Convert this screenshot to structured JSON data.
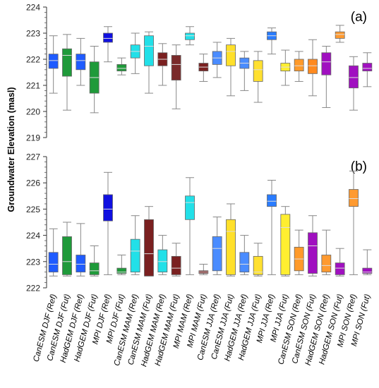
{
  "chart_data": {
    "type": "boxplot",
    "ylabel": "Groundwater Elevation (masl)",
    "categories": [
      "CanESM DJF (Ref)",
      "CanESM DJF (Fut)",
      "HadGEM DJF (Ref)",
      "HadGEM DJF (Fut)",
      "MPI DJF (Ref)",
      "MPI DJF (Fut)",
      "CanESM MAM (Ref)",
      "CanESM MAM (Fut)",
      "HadGEM MAM (Ref)",
      "HadGEM MAM (Fut)",
      "MPI MAM (Ref)",
      "MPI MAM (Fut)",
      "CanESM JJA (Ref)",
      "CanESM JJA (Fut)",
      "HadGEM JJA (Ref)",
      "HadGEM JJA (Fut)",
      "MPI JJA (Ref)",
      "MPI JJA (Fut)",
      "CanESM SON (Ref)",
      "CanESM SON (Fut)",
      "HadGEM SON (Ref)",
      "HadGEM SON (Fut)",
      "MPI SON (Ref)",
      "MPI SON (Fut)"
    ],
    "colors": [
      "#1f5bff",
      "#1f5bff",
      "#1f5bff",
      "#1f9a3a",
      "#1f9a3a",
      "#1010e0",
      "#1a9a3a",
      "#2ec0c0",
      "#22e0e8",
      "#7a2020",
      "#7a2a2a",
      "#22e0e8",
      "#7a2020",
      "#4a8cff",
      "#ffe02a",
      "#4a8cff",
      "#ffe030",
      "#2a7cff",
      "#ffee30",
      "#ff9a2a",
      "#ff8a20",
      "#ff9a30",
      "#a010c0",
      "#ffa030"
    ],
    "panels": [
      {
        "label": "(a)",
        "ylim": [
          219,
          224
        ],
        "yticks": [
          "219",
          "220",
          "221",
          "222",
          "223",
          "224"
        ],
        "colors": [
          "#1f5bff",
          "#1f9a3a",
          "#1f5bff",
          "#1f9a3a",
          "#1010e0",
          "#1f9a3a",
          "#22e0e8",
          "#22e0e8",
          "#7a2020",
          "#7a2a2a",
          "#22e0e8",
          "#7a2020",
          "#4a8cff",
          "#ffe02a",
          "#4a8cff",
          "#ffe030",
          "#2a7cff",
          "#ffee30",
          "#ff9a2a",
          "#ff8a20",
          "#a010c0",
          "#ff9a30",
          "#a010c0",
          "#a010c0"
        ],
        "boxes": [
          {
            "min": 220.7,
            "q1": 221.65,
            "median": 221.95,
            "q3": 222.2,
            "max": 222.9
          },
          {
            "min": 220.05,
            "q1": 221.35,
            "median": 222.15,
            "q3": 222.4,
            "max": 222.95
          },
          {
            "min": 221.0,
            "q1": 221.6,
            "median": 221.95,
            "q3": 222.2,
            "max": 222.8
          },
          {
            "min": 219.95,
            "q1": 220.7,
            "median": 221.3,
            "q3": 221.9,
            "max": 222.5
          },
          {
            "min": 221.9,
            "q1": 222.65,
            "median": 222.8,
            "q3": 223.0,
            "max": 223.25
          },
          {
            "min": 221.4,
            "q1": 221.55,
            "median": 221.65,
            "q3": 221.8,
            "max": 222.05
          },
          {
            "min": 221.45,
            "q1": 222.05,
            "median": 222.3,
            "q3": 222.55,
            "max": 223.0
          },
          {
            "min": 220.7,
            "q1": 221.75,
            "median": 222.5,
            "q3": 222.9,
            "max": 223.05
          },
          {
            "min": 221.0,
            "q1": 221.75,
            "median": 222.0,
            "q3": 222.25,
            "max": 222.6
          },
          {
            "min": 220.1,
            "q1": 221.2,
            "median": 221.8,
            "q3": 222.15,
            "max": 222.55
          },
          {
            "min": 222.55,
            "q1": 222.75,
            "median": 222.9,
            "q3": 223.0,
            "max": 223.25
          },
          {
            "min": 221.15,
            "q1": 221.55,
            "median": 221.7,
            "q3": 221.85,
            "max": 222.2
          },
          {
            "min": 221.3,
            "q1": 221.8,
            "median": 222.05,
            "q3": 222.3,
            "max": 222.65
          },
          {
            "min": 220.6,
            "q1": 221.75,
            "median": 222.3,
            "q3": 222.55,
            "max": 222.8
          },
          {
            "min": 220.8,
            "q1": 221.65,
            "median": 221.85,
            "q3": 222.05,
            "max": 222.3
          },
          {
            "min": 220.35,
            "q1": 221.15,
            "median": 221.6,
            "q3": 221.95,
            "max": 222.3
          },
          {
            "min": 222.2,
            "q1": 222.75,
            "median": 222.9,
            "q3": 223.05,
            "max": 223.2
          },
          {
            "min": 221.0,
            "q1": 221.55,
            "median": 221.7,
            "q3": 221.85,
            "max": 222.35
          },
          {
            "min": 221.15,
            "q1": 221.55,
            "median": 221.75,
            "q3": 222.0,
            "max": 222.3
          },
          {
            "min": 220.6,
            "q1": 221.45,
            "median": 221.75,
            "q3": 222.0,
            "max": 222.75
          },
          {
            "min": 220.15,
            "q1": 221.4,
            "median": 221.9,
            "q3": 222.25,
            "max": 222.5
          },
          {
            "min": 222.65,
            "q1": 222.8,
            "median": 222.95,
            "q3": 223.05,
            "max": 223.3
          },
          {
            "min": 220.05,
            "q1": 220.9,
            "median": 221.3,
            "q3": 221.75,
            "max": 222.1
          },
          {
            "min": 220.95,
            "q1": 221.55,
            "median": 221.65,
            "q3": 221.85,
            "max": 222.25
          }
        ]
      },
      {
        "label": "(b)",
        "ylim": [
          222,
          227
        ],
        "yticks": [
          "222",
          "223",
          "224",
          "225",
          "226",
          "227"
        ],
        "colors": [
          "#1f5bff",
          "#1f9a3a",
          "#1f5bff",
          "#1f9a3a",
          "#1010e0",
          "#1f9a3a",
          "#22e0e8",
          "#7a2020",
          "#22e0e8",
          "#7a2020",
          "#22e0e8",
          "#7a2020",
          "#4a8cff",
          "#ffe02a",
          "#4a8cff",
          "#ffe030",
          "#2a7cff",
          "#ffee30",
          "#ff9a2a",
          "#a010c0",
          "#ff9a30",
          "#a010c0",
          "#ff9a30",
          "#a010c0"
        ],
        "boxes": [
          {
            "min": 222.45,
            "q1": 222.6,
            "median": 222.9,
            "q3": 223.35,
            "max": 224.25
          },
          {
            "min": 222.45,
            "q1": 222.5,
            "median": 223.0,
            "q3": 223.95,
            "max": 224.5
          },
          {
            "min": 222.45,
            "q1": 222.6,
            "median": 222.9,
            "q3": 223.25,
            "max": 224.45
          },
          {
            "min": 222.45,
            "q1": 222.5,
            "median": 222.65,
            "q3": 222.95,
            "max": 223.6
          },
          {
            "min": 222.5,
            "q1": 224.55,
            "median": 225.0,
            "q3": 225.55,
            "max": 226.4
          },
          {
            "min": 222.5,
            "q1": 222.55,
            "median": 222.6,
            "q3": 222.75,
            "max": 223.25
          },
          {
            "min": 222.5,
            "q1": 222.6,
            "median": 223.4,
            "q3": 223.85,
            "max": 224.75
          },
          {
            "min": 222.45,
            "q1": 222.45,
            "median": 223.3,
            "q3": 224.6,
            "max": 225.1
          },
          {
            "min": 222.5,
            "q1": 222.6,
            "median": 223.0,
            "q3": 223.45,
            "max": 224.0
          },
          {
            "min": 222.45,
            "q1": 222.5,
            "median": 222.75,
            "q3": 223.2,
            "max": 223.7
          },
          {
            "min": 222.5,
            "q1": 224.6,
            "median": 225.25,
            "q3": 225.5,
            "max": 226.2
          },
          {
            "min": 222.5,
            "q1": 222.55,
            "median": 222.6,
            "q3": 222.65,
            "max": 222.9
          },
          {
            "min": 222.5,
            "q1": 222.65,
            "median": 223.5,
            "q3": 223.95,
            "max": 224.7
          },
          {
            "min": 222.45,
            "q1": 222.5,
            "median": 224.15,
            "q3": 224.6,
            "max": 225.2
          },
          {
            "min": 222.5,
            "q1": 222.6,
            "median": 222.9,
            "q3": 223.35,
            "max": 224.0
          },
          {
            "min": 222.45,
            "q1": 222.5,
            "median": 222.6,
            "q3": 223.2,
            "max": 223.7
          },
          {
            "min": 222.5,
            "q1": 225.1,
            "median": 225.3,
            "q3": 225.55,
            "max": 226.1
          },
          {
            "min": 222.45,
            "q1": 222.5,
            "median": 224.3,
            "q3": 224.8,
            "max": 225.1
          },
          {
            "min": 222.5,
            "q1": 222.65,
            "median": 223.1,
            "q3": 223.55,
            "max": 224.2
          },
          {
            "min": 222.45,
            "q1": 222.55,
            "median": 223.6,
            "q3": 224.1,
            "max": 224.75
          },
          {
            "min": 222.5,
            "q1": 222.6,
            "median": 222.85,
            "q3": 223.25,
            "max": 224.2
          },
          {
            "min": 222.45,
            "q1": 222.5,
            "median": 222.75,
            "q3": 222.95,
            "max": 223.5
          },
          {
            "min": 222.5,
            "q1": 225.1,
            "median": 225.4,
            "q3": 225.75,
            "max": 226.45
          },
          {
            "min": 222.5,
            "q1": 222.55,
            "median": 222.6,
            "q3": 222.75,
            "max": 223.45
          }
        ]
      }
    ]
  }
}
